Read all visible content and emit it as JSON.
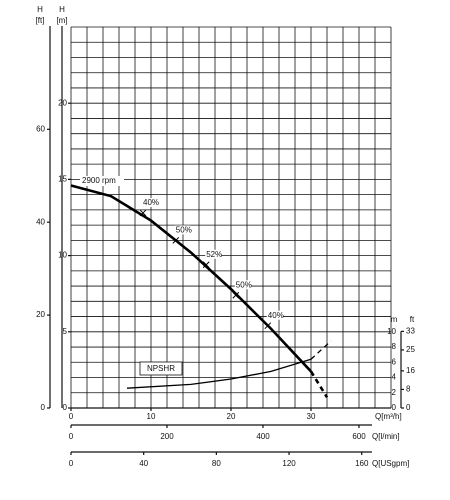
{
  "chart_data": {
    "type": "line",
    "xlim": [
      0,
      40
    ],
    "xticks": [
      0,
      10,
      20,
      30
    ],
    "xlabel": "Q[m³/h]",
    "ylim": [
      0,
      25
    ],
    "yticks": [
      0,
      5,
      10,
      15,
      20
    ],
    "ylabel": [
      "H",
      "[m]"
    ],
    "xgrid": [
      0,
      2,
      4,
      6,
      8,
      10,
      12,
      14,
      16,
      18,
      20,
      22,
      24,
      26,
      28,
      30,
      32,
      34,
      36,
      38,
      40
    ],
    "ygrid": [
      0,
      1,
      2,
      3,
      4,
      5,
      6,
      7,
      8,
      9,
      10,
      11,
      12,
      13,
      14,
      15,
      16,
      17,
      18,
      19,
      20,
      21,
      22,
      23,
      24,
      25
    ],
    "y_ft": {
      "label": [
        "H",
        "[ft]"
      ],
      "lim": [
        0,
        82.02
      ],
      "ticks": [
        0,
        20,
        40,
        60
      ]
    },
    "y2lim": [
      0,
      50
    ],
    "y2ticks": [
      0,
      2,
      4,
      6,
      8,
      10
    ],
    "y2label": "m",
    "y2_ft": {
      "label": "ft",
      "lim": [
        0,
        164.04
      ],
      "ticks": [
        0,
        8,
        16,
        25,
        33
      ]
    },
    "x2": {
      "label": "Q[l/min]",
      "lim": [
        0,
        666.67
      ],
      "ticks": [
        0,
        200,
        400,
        600
      ]
    },
    "x3": {
      "label": "Q[USgpm]",
      "lim": [
        0,
        176.1
      ],
      "ticks": [
        0,
        40,
        80,
        120,
        160
      ]
    },
    "series": [
      {
        "name": "2900 rpm",
        "color": "#000000",
        "style": "solid",
        "x": [
          0,
          5,
          10,
          15,
          20,
          25,
          30
        ],
        "values": [
          14.6,
          13.9,
          12.3,
          10.2,
          7.8,
          5.2,
          2.4
        ]
      },
      {
        "color": "#000000",
        "style": "dashed",
        "x": [
          30,
          32
        ],
        "values": [
          2.4,
          0.7
        ]
      },
      {
        "name": "NPSHR",
        "color": "#000000",
        "style": "solid",
        "axis": "y2",
        "x": [
          7,
          15,
          20,
          25,
          30
        ],
        "values": [
          2.6,
          3.1,
          3.8,
          4.8,
          6.4
        ]
      },
      {
        "color": "#000000",
        "style": "dashed",
        "axis": "y2",
        "x": [
          30,
          32.5
        ],
        "values": [
          6.4,
          8.8
        ]
      }
    ],
    "efficiency": {
      "x": [
        9,
        13.1,
        16.9,
        20.6,
        24.6
      ],
      "y": [
        12.8,
        11.0,
        9.4,
        7.4,
        5.4
      ],
      "values": [
        40,
        50,
        52,
        50,
        40
      ],
      "value_labels": [
        "40%",
        "50%",
        "52%",
        "50%",
        "40%"
      ]
    }
  }
}
